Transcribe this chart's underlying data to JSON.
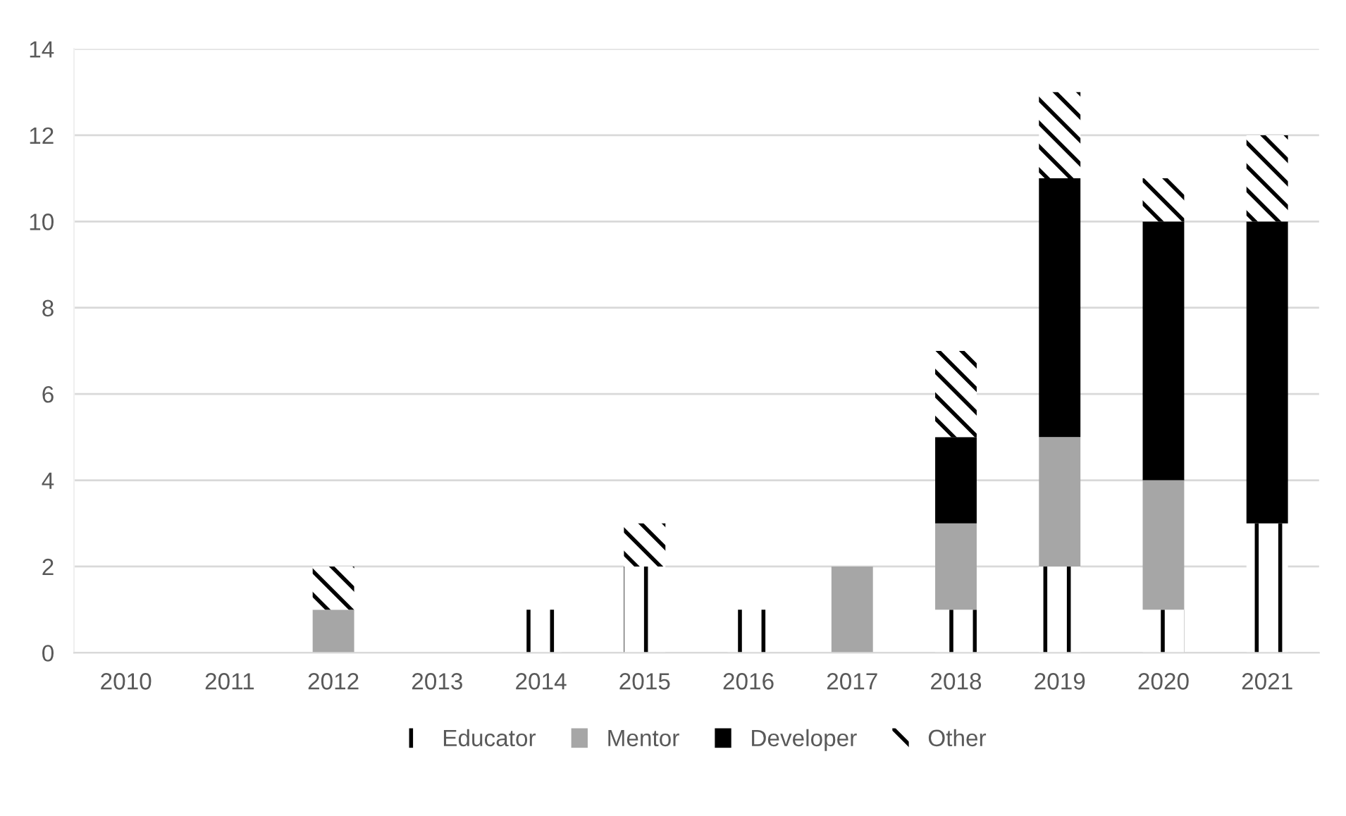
{
  "chart_data": {
    "type": "bar",
    "stacked": true,
    "categories": [
      "2010",
      "2011",
      "2012",
      "2013",
      "2014",
      "2015",
      "2016",
      "2017",
      "2018",
      "2019",
      "2020",
      "2021"
    ],
    "series": [
      {
        "name": "Educator",
        "color": "#000000",
        "values": [
          0,
          0,
          0,
          0,
          1,
          2,
          1,
          0,
          1,
          2,
          1,
          3
        ]
      },
      {
        "name": "Mentor",
        "color": "#a6a6a6",
        "values": [
          0,
          0,
          1,
          0,
          0,
          0,
          0,
          2,
          2,
          3,
          3,
          0
        ]
      },
      {
        "name": "Developer",
        "color": "#000000",
        "values": [
          0,
          0,
          0,
          0,
          0,
          0,
          0,
          0,
          2,
          6,
          6,
          7
        ]
      },
      {
        "name": "Other",
        "color": "#000000",
        "values": [
          0,
          0,
          1,
          0,
          0,
          1,
          0,
          0,
          2,
          2,
          1,
          2
        ]
      }
    ],
    "ylim": [
      0,
      14
    ],
    "yticks": [
      0,
      2,
      4,
      6,
      8,
      10,
      12,
      14
    ],
    "grid": "y",
    "legend": "bottom"
  }
}
